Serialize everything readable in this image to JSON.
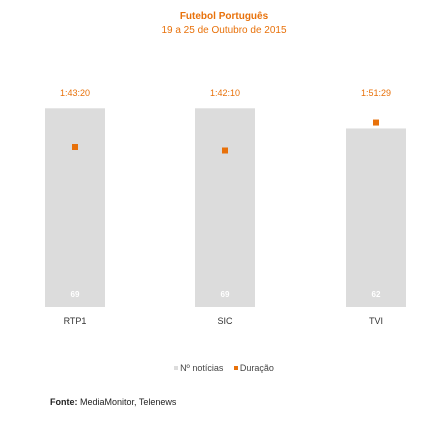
{
  "chart_data": {
    "type": "bar",
    "title": "Futebol Português",
    "subtitle": "19 a 25 de Outubro de 2015",
    "categories": [
      "RTP1",
      "SIC",
      "TVI"
    ],
    "series": [
      {
        "name": "Nº notícias",
        "values": [
          69,
          69,
          62
        ],
        "color": "#dcdcdc"
      },
      {
        "name": "Duração",
        "values": [
          "1:43:20",
          "1:42:10",
          "1:51:29"
        ],
        "color": "#e8710a"
      }
    ],
    "legend_position": "bottom",
    "grid": false
  },
  "source": {
    "label": "Fonte:",
    "text": "MediaMonitor, Telenews"
  },
  "colors": {
    "accent": "#e8710a",
    "bar": "#dcdcdc",
    "bar_label": "#ffffff"
  }
}
